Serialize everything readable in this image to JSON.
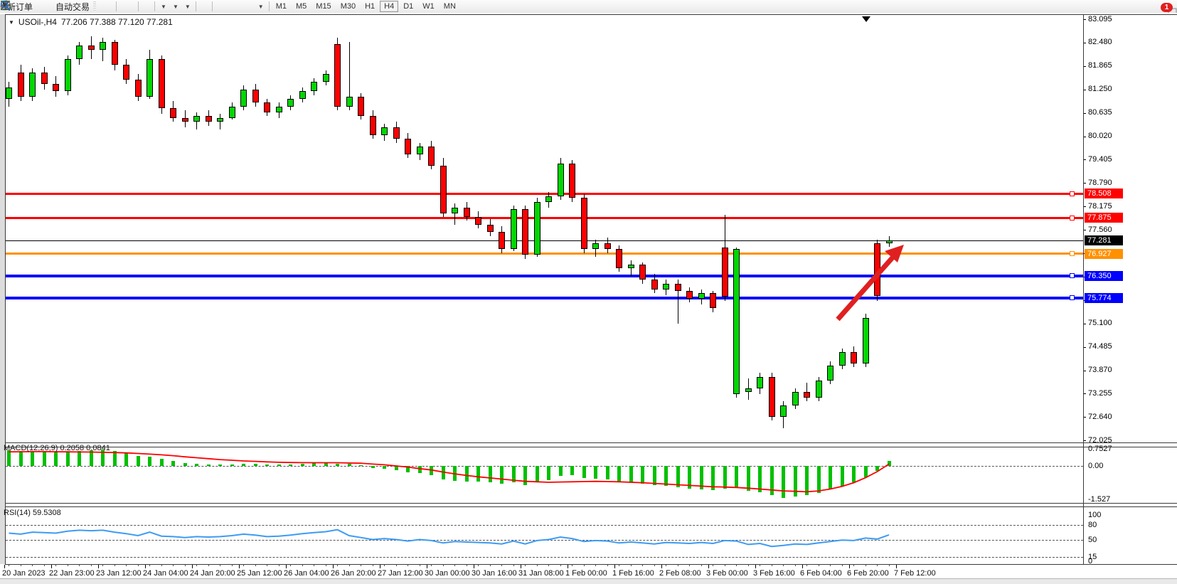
{
  "ui": {
    "toolbar": {
      "new_order": "新订单",
      "autotrading": "自动交易",
      "timeframes": [
        "M1",
        "M5",
        "M15",
        "M30",
        "H1",
        "H4",
        "D1",
        "W1",
        "MN"
      ],
      "active_timeframe": "H4",
      "notification_badge": "1",
      "icons": [
        "new-order",
        "gold-gem",
        "profile",
        "signals",
        "autotrading-status",
        "bar-chart",
        "candlestick-chart",
        "line-chart",
        "zoom-in",
        "zoom-out",
        "tile-windows",
        "arrange-charts",
        "cascade-charts",
        "add-indicator",
        "timeframe-clock",
        "chart-template",
        "cursor",
        "crosshair",
        "vertical-line",
        "horizontal-line",
        "trend-line",
        "equidistant-channel",
        "fibonacci-retracement",
        "text",
        "text-label",
        "arrow-shapes",
        "search",
        "notifications"
      ]
    },
    "chart": {
      "symbol": "USOil-,H4",
      "ohlc": "77.206 77.388 77.120 77.281",
      "macd_label": "MACD(12,26,9) 0.2058 0.0841",
      "rsi_label": "RSI(14) 59.5308",
      "colors": {
        "up": "#00d700",
        "down": "#ff0000",
        "rsi_line": "#3d9bf5",
        "macd_histogram": "#00c000",
        "macd_signal": "#ff0000",
        "arrow": "#e02020",
        "red": "#ff0000",
        "black": "#000000",
        "orange": "#ff9100",
        "blue": "#0000ff"
      }
    }
  },
  "chart_data": {
    "type": "candlestick",
    "symbol": "USOil",
    "timeframe": "H4",
    "current_ohlc": {
      "open": 77.206,
      "high": 77.388,
      "low": 77.12,
      "close": 77.281
    },
    "price_axis": {
      "max": 83.095,
      "min": 72.025,
      "step": 0.615
    },
    "time_labels": [
      "20 Jan 2023",
      "22 Jan 23:00",
      "23 Jan 12:00",
      "24 Jan 04:00",
      "24 Jan 20:00",
      "25 Jan 12:00",
      "26 Jan 04:00",
      "26 Jan 20:00",
      "27 Jan 12:00",
      "30 Jan 00:00",
      "30 Jan 16:00",
      "31 Jan 08:00",
      "1 Feb 00:00",
      "1 Feb 16:00",
      "2 Feb 08:00",
      "3 Feb 00:00",
      "3 Feb 16:00",
      "6 Feb 04:00",
      "6 Feb 20:00",
      "7 Feb 12:00"
    ],
    "horizontal_lines": [
      {
        "price": 78.508,
        "color": "red",
        "thickness": 3
      },
      {
        "price": 77.875,
        "color": "red",
        "thickness": 3
      },
      {
        "price": 77.281,
        "color": "black",
        "thickness": 1
      },
      {
        "price": 76.927,
        "color": "orange",
        "thickness": 3
      },
      {
        "price": 76.35,
        "color": "blue",
        "thickness": 4
      },
      {
        "price": 75.774,
        "color": "blue",
        "thickness": 4
      }
    ],
    "candles": [
      [
        81.0,
        81.45,
        80.8,
        81.3
      ],
      [
        81.7,
        81.9,
        80.95,
        81.05
      ],
      [
        81.05,
        81.8,
        80.95,
        81.7
      ],
      [
        81.7,
        81.85,
        81.25,
        81.4
      ],
      [
        81.4,
        81.6,
        81.05,
        81.2
      ],
      [
        81.2,
        82.15,
        81.1,
        82.05
      ],
      [
        82.05,
        82.5,
        81.9,
        82.4
      ],
      [
        82.4,
        82.65,
        82.05,
        82.3
      ],
      [
        82.3,
        82.6,
        82.0,
        82.5
      ],
      [
        82.5,
        82.55,
        81.75,
        81.9
      ],
      [
        81.9,
        82.05,
        81.4,
        81.5
      ],
      [
        81.5,
        81.65,
        80.95,
        81.05
      ],
      [
        81.05,
        82.3,
        81.0,
        82.05
      ],
      [
        82.05,
        82.15,
        80.6,
        80.75
      ],
      [
        80.75,
        80.95,
        80.4,
        80.5
      ],
      [
        80.5,
        80.7,
        80.25,
        80.4
      ],
      [
        80.4,
        80.65,
        80.2,
        80.55
      ],
      [
        80.55,
        80.7,
        80.3,
        80.4
      ],
      [
        80.4,
        80.6,
        80.2,
        80.5
      ],
      [
        80.5,
        80.9,
        80.45,
        80.8
      ],
      [
        80.8,
        81.35,
        80.7,
        81.25
      ],
      [
        81.25,
        81.4,
        80.8,
        80.9
      ],
      [
        80.9,
        81.0,
        80.55,
        80.65
      ],
      [
        80.65,
        80.9,
        80.5,
        80.8
      ],
      [
        80.8,
        81.1,
        80.7,
        81.0
      ],
      [
        81.0,
        81.3,
        80.9,
        81.2
      ],
      [
        81.2,
        81.55,
        81.1,
        81.45
      ],
      [
        81.45,
        81.75,
        81.35,
        81.65
      ],
      [
        82.45,
        82.6,
        80.7,
        80.8
      ],
      [
        80.8,
        82.5,
        80.7,
        81.05
      ],
      [
        81.05,
        81.15,
        80.45,
        80.55
      ],
      [
        80.55,
        80.7,
        79.95,
        80.05
      ],
      [
        80.05,
        80.35,
        79.9,
        80.25
      ],
      [
        80.25,
        80.4,
        79.85,
        79.95
      ],
      [
        79.95,
        80.1,
        79.45,
        79.55
      ],
      [
        79.55,
        79.85,
        79.4,
        79.75
      ],
      [
        79.75,
        79.9,
        79.15,
        79.25
      ],
      [
        79.25,
        79.45,
        77.9,
        78.0
      ],
      [
        78.0,
        78.25,
        77.7,
        78.15
      ],
      [
        78.15,
        78.3,
        77.8,
        77.9
      ],
      [
        77.9,
        78.05,
        77.6,
        77.7
      ],
      [
        77.7,
        77.85,
        77.4,
        77.5
      ],
      [
        77.5,
        77.65,
        76.95,
        77.05
      ],
      [
        77.05,
        78.2,
        77.0,
        78.1
      ],
      [
        78.1,
        78.2,
        76.8,
        76.9
      ],
      [
        76.9,
        78.4,
        76.85,
        78.3
      ],
      [
        78.3,
        78.55,
        78.15,
        78.45
      ],
      [
        78.45,
        79.45,
        78.35,
        79.3
      ],
      [
        79.3,
        79.4,
        78.3,
        78.4
      ],
      [
        78.4,
        78.5,
        76.95,
        77.05
      ],
      [
        77.05,
        77.3,
        76.85,
        77.2
      ],
      [
        77.2,
        77.35,
        76.95,
        77.05
      ],
      [
        77.05,
        77.15,
        76.45,
        76.55
      ],
      [
        76.55,
        76.75,
        76.35,
        76.65
      ],
      [
        76.65,
        76.7,
        76.15,
        76.25
      ],
      [
        76.25,
        76.4,
        75.9,
        76.0
      ],
      [
        76.0,
        76.25,
        75.85,
        76.15
      ],
      [
        76.15,
        76.25,
        75.1,
        75.95
      ],
      [
        75.95,
        76.05,
        75.65,
        75.75
      ],
      [
        75.75,
        76.0,
        75.6,
        75.9
      ],
      [
        75.9,
        75.95,
        75.4,
        75.5
      ],
      [
        77.1,
        77.95,
        75.7,
        75.8
      ],
      [
        73.25,
        77.1,
        73.15,
        77.05
      ],
      [
        73.3,
        73.65,
        73.1,
        73.4
      ],
      [
        73.4,
        73.8,
        73.25,
        73.7
      ],
      [
        73.7,
        73.8,
        72.55,
        72.65
      ],
      [
        72.65,
        73.05,
        72.35,
        72.95
      ],
      [
        72.95,
        73.4,
        72.85,
        73.3
      ],
      [
        73.3,
        73.55,
        73.05,
        73.15
      ],
      [
        73.15,
        73.7,
        73.05,
        73.6
      ],
      [
        73.6,
        74.1,
        73.5,
        74.0
      ],
      [
        74.0,
        74.45,
        73.9,
        74.35
      ],
      [
        74.35,
        74.5,
        73.95,
        74.05
      ],
      [
        74.05,
        75.35,
        73.95,
        75.25
      ],
      [
        77.2,
        77.3,
        75.7,
        75.83
      ],
      [
        77.206,
        77.388,
        77.12,
        77.281
      ]
    ],
    "macd": {
      "params": "12,26,9",
      "main_value": 0.2058,
      "signal_value": 0.0841,
      "scale": [
        "0.7527",
        "0.00",
        "-1.527"
      ],
      "histogram": [
        0.68,
        0.66,
        0.64,
        0.62,
        0.6,
        0.63,
        0.66,
        0.7,
        0.72,
        0.65,
        0.55,
        0.45,
        0.42,
        0.3,
        0.22,
        0.14,
        0.1,
        0.07,
        0.05,
        0.06,
        0.1,
        0.1,
        0.06,
        0.05,
        0.06,
        0.08,
        0.12,
        0.16,
        0.1,
        0.08,
        0.02,
        -0.08,
        -0.12,
        -0.18,
        -0.28,
        -0.32,
        -0.42,
        -0.6,
        -0.65,
        -0.68,
        -0.7,
        -0.72,
        -0.78,
        -0.72,
        -0.85,
        -0.72,
        -0.62,
        -0.45,
        -0.4,
        -0.52,
        -0.55,
        -0.58,
        -0.68,
        -0.72,
        -0.78,
        -0.85,
        -0.88,
        -0.95,
        -1.0,
        -1.02,
        -1.08,
        -1.0,
        -0.95,
        -1.1,
        -1.15,
        -1.3,
        -1.4,
        -1.35,
        -1.28,
        -1.18,
        -1.05,
        -0.9,
        -0.72,
        -0.5,
        -0.22,
        0.21
      ],
      "signal": [
        0.62,
        0.625,
        0.63,
        0.63,
        0.625,
        0.62,
        0.615,
        0.61,
        0.6,
        0.59,
        0.575,
        0.55,
        0.52,
        0.49,
        0.45,
        0.4,
        0.36,
        0.32,
        0.28,
        0.25,
        0.22,
        0.2,
        0.18,
        0.16,
        0.15,
        0.145,
        0.14,
        0.14,
        0.14,
        0.13,
        0.12,
        0.08,
        0.05,
        0.0,
        -0.05,
        -0.12,
        -0.18,
        -0.27,
        -0.35,
        -0.42,
        -0.48,
        -0.53,
        -0.58,
        -0.63,
        -0.68,
        -0.7,
        -0.72,
        -0.71,
        -0.7,
        -0.69,
        -0.68,
        -0.69,
        -0.7,
        -0.72,
        -0.74,
        -0.77,
        -0.8,
        -0.83,
        -0.86,
        -0.89,
        -0.92,
        -0.93,
        -0.95,
        -0.98,
        -1.02,
        -1.06,
        -1.1,
        -1.12,
        -1.14,
        -1.1,
        -1.02,
        -0.9,
        -0.74,
        -0.52,
        -0.25,
        0.08
      ]
    },
    "rsi": {
      "period": 14,
      "value": 59.5308,
      "scale": [
        "100",
        "80",
        "50",
        "15",
        "0"
      ],
      "levels": [
        80,
        50,
        15
      ],
      "values": [
        63,
        61,
        65,
        64,
        63,
        67,
        69,
        68,
        69,
        65,
        62,
        58,
        65,
        57,
        56,
        54,
        56,
        55,
        56,
        58,
        61,
        59,
        56,
        57,
        59,
        62,
        64,
        66,
        70,
        58,
        54,
        50,
        52,
        50,
        47,
        50,
        48,
        43,
        46,
        45,
        44,
        43,
        41,
        47,
        41,
        48,
        50,
        55,
        52,
        46,
        48,
        47,
        43,
        45,
        43,
        41,
        44,
        43,
        42,
        44,
        42,
        48,
        47,
        40,
        42,
        36,
        38,
        41,
        40,
        43,
        46,
        49,
        48,
        53,
        51,
        59.5
      ],
      "final_label_value": "59.5308"
    },
    "annotation_arrow": {
      "direction": "up-right",
      "color": "#e02020"
    }
  }
}
